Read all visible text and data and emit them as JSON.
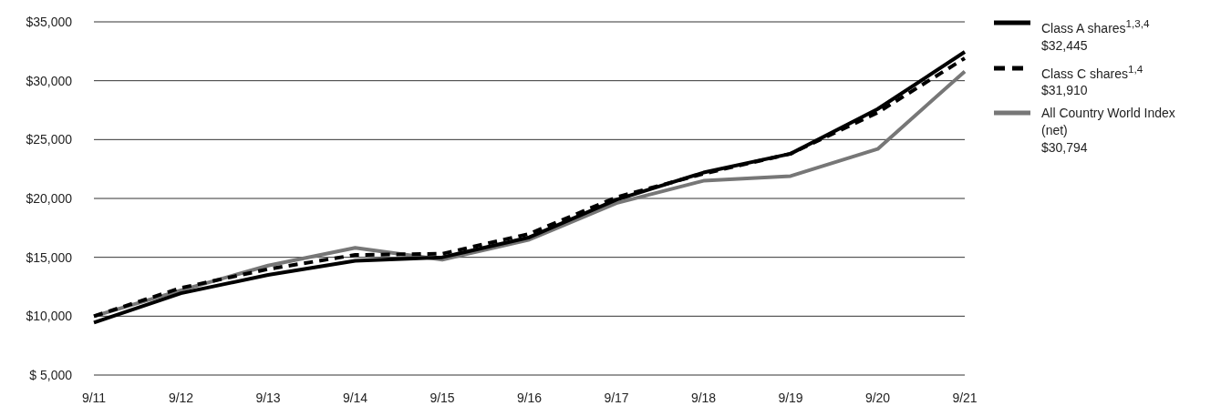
{
  "chart_data": {
    "type": "line",
    "categories": [
      "9/11",
      "9/12",
      "9/13",
      "9/14",
      "9/15",
      "9/16",
      "9/17",
      "9/18",
      "9/19",
      "9/20",
      "9/21"
    ],
    "series": [
      {
        "name": "Class A shares$^{1,3,4}$\n$32,445",
        "color": "#000000",
        "line_style": "solid",
        "values": [
          9450,
          11950,
          13500,
          14700,
          15000,
          16700,
          19900,
          22200,
          23800,
          27600,
          32445
        ]
      },
      {
        "name": "Class C shares$^{1,4}$\n$31,910",
        "color": "#000000",
        "line_style": "dashed",
        "values": [
          10000,
          12400,
          14000,
          15200,
          15300,
          17000,
          20100,
          22100,
          23800,
          27300,
          31910
        ]
      },
      {
        "name": "All Country World Index (net)\n$30,794",
        "color": "#777777",
        "line_style": "solid",
        "values": [
          10000,
          12200,
          14300,
          15800,
          14800,
          16500,
          19600,
          21500,
          21900,
          24200,
          30794
        ]
      }
    ],
    "ylim": [
      5000,
      35000
    ],
    "yticks": [
      {
        "value": 5000,
        "label": "$ 5,000"
      },
      {
        "value": 10000,
        "label": "$10,000"
      },
      {
        "value": 15000,
        "label": "$15,000"
      },
      {
        "value": 20000,
        "label": "$20,000"
      },
      {
        "value": 25000,
        "label": "$25,000"
      },
      {
        "value": 30000,
        "label": "$30,000"
      },
      {
        "value": 35000,
        "label": "$35,000"
      }
    ],
    "grid": "y",
    "legend": "right",
    "marker": "none"
  }
}
